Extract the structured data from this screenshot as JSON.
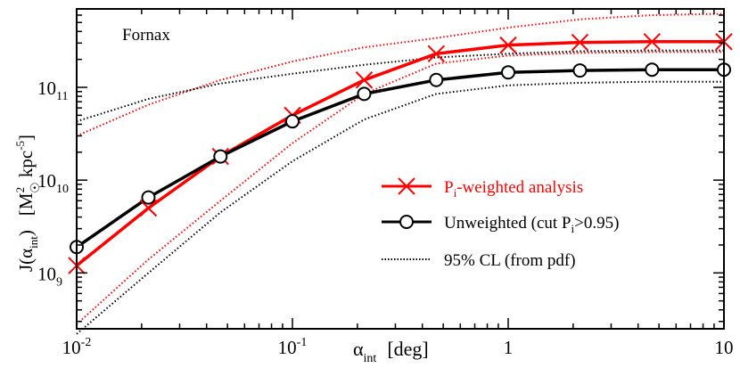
{
  "chart_data": {
    "type": "line",
    "title": "Fornax",
    "xlabel": {
      "symbol": "α",
      "sub": "int",
      "unit": "[deg]"
    },
    "ylabel": {
      "main": "J(α",
      "sub": "int",
      "close": ")",
      "unit_open": "[M",
      "unit_sup": "2",
      "unit_sun": "☉",
      "unit_mid": " kpc",
      "unit_sup2": "-5",
      "unit_close": "]"
    },
    "xscale": "log",
    "yscale": "log",
    "xlim": [
      0.01,
      10
    ],
    "ylim": [
      250000000.0,
      700000000000.0
    ],
    "x_ticks": [
      {
        "value": 0.01,
        "base": "10",
        "exp": "-2"
      },
      {
        "value": 0.1,
        "base": "10",
        "exp": "-1"
      },
      {
        "value": 1,
        "base": "1",
        "exp": ""
      },
      {
        "value": 10,
        "base": "10",
        "exp": ""
      }
    ],
    "y_ticks": [
      {
        "value": 1000000000.0,
        "base": "10",
        "exp": "9"
      },
      {
        "value": 10000000000.0,
        "base": "10",
        "exp": "10"
      },
      {
        "value": 100000000000.0,
        "base": "10",
        "exp": "11"
      }
    ],
    "series": [
      {
        "name": "P",
        "legend_sub": "i",
        "legend_rest": "-weighted analysis",
        "color": "#ff0000",
        "style": "solid",
        "marker": "x",
        "x": [
          0.01,
          0.0215,
          0.0464,
          0.1,
          0.215,
          0.464,
          1,
          2.15,
          4.64,
          10
        ],
        "y": [
          1200000000.0,
          5000000000.0,
          18000000000.0,
          50000000000.0,
          120000000000.0,
          230000000000.0,
          285000000000.0,
          305000000000.0,
          310000000000.0,
          310000000000.0
        ]
      },
      {
        "name": "Unweighted (cut P",
        "legend_sub": "i",
        "legend_rest": ">0.95)",
        "color": "#000000",
        "style": "solid",
        "marker": "o",
        "x": [
          0.01,
          0.0215,
          0.0464,
          0.1,
          0.215,
          0.464,
          1,
          2.15,
          4.64,
          10
        ],
        "y": [
          1900000000.0,
          6500000000.0,
          18000000000.0,
          43000000000.0,
          85000000000.0,
          120000000000.0,
          145000000000.0,
          152000000000.0,
          155000000000.0,
          155000000000.0
        ]
      },
      {
        "name": "95% CL (from pdf)",
        "legend_sub": "",
        "legend_rest": "",
        "color": "#000000",
        "style": "dotted",
        "marker": "none",
        "x": [],
        "y": []
      }
    ],
    "bands": [
      {
        "series": "P-weighted upper",
        "color": "#ff0000",
        "x": [
          0.01,
          0.0215,
          0.0464,
          0.1,
          0.215,
          0.464,
          1,
          2.15,
          4.64,
          10
        ],
        "y": [
          30000000000.0,
          65000000000.0,
          120000000000.0,
          190000000000.0,
          270000000000.0,
          340000000000.0,
          440000000000.0,
          540000000000.0,
          600000000000.0,
          620000000000.0
        ]
      },
      {
        "series": "P-weighted lower",
        "color": "#ff0000",
        "x": [
          0.01,
          0.0215,
          0.0464,
          0.1,
          0.215,
          0.464,
          1,
          2.15,
          4.64,
          10
        ],
        "y": [
          280000000.0,
          1400000000.0,
          6000000000.0,
          25000000000.0,
          85000000000.0,
          180000000000.0,
          220000000000.0,
          235000000000.0,
          240000000000.0,
          240000000000.0
        ]
      },
      {
        "series": "Unweighted upper",
        "color": "#000000",
        "x": [
          0.01,
          0.0215,
          0.0464,
          0.1,
          0.215,
          0.464,
          1,
          2.15,
          4.64,
          10
        ],
        "y": [
          43000000000.0,
          75000000000.0,
          110000000000.0,
          140000000000.0,
          175000000000.0,
          210000000000.0,
          230000000000.0,
          245000000000.0,
          250000000000.0,
          250000000000.0
        ]
      },
      {
        "series": "Unweighted lower",
        "color": "#000000",
        "x": [
          0.01,
          0.0215,
          0.0464,
          0.1,
          0.215,
          0.464,
          1,
          2.15,
          4.64,
          10
        ],
        "y": [
          220000000.0,
          1000000000.0,
          4500000000.0,
          16000000000.0,
          45000000000.0,
          85000000000.0,
          105000000000.0,
          112000000000.0,
          115000000000.0,
          115000000000.0
        ]
      }
    ],
    "legend_position": "center-right"
  }
}
